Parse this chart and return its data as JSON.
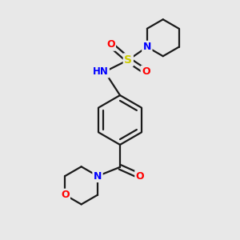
{
  "background_color": "#e8e8e8",
  "atom_colors": {
    "C": "#000000",
    "H": "#708090",
    "N": "#0000ff",
    "O": "#ff0000",
    "S": "#cccc00"
  },
  "bond_color": "#1a1a1a",
  "bond_width": 1.6,
  "figsize": [
    3.0,
    3.0
  ],
  "dpi": 100
}
